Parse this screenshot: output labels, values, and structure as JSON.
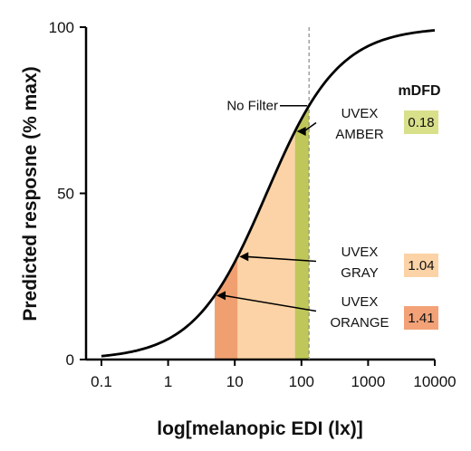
{
  "chart_data": {
    "type": "line",
    "xlabel": "log[melanopic  EDI (lx)]",
    "ylabel": "Predicted resposne  (% max)",
    "x_scale": "log",
    "xlim": [
      0.1,
      10000
    ],
    "ylim": [
      0,
      100
    ],
    "x_ticks": [
      "0.1",
      "1",
      "10",
      "100",
      "1000",
      "10000"
    ],
    "y_ticks": [
      "0",
      "50",
      "100"
    ],
    "curve": {
      "ec50": 30,
      "hill": 0.8,
      "x": [
        0.1,
        0.2,
        0.5,
        1,
        2,
        5,
        10,
        20,
        50,
        100,
        130,
        200,
        500,
        1000,
        2000,
        5000,
        10000
      ],
      "y": [
        1,
        2,
        4,
        7,
        11,
        19,
        29,
        42,
        60,
        73,
        78,
        85,
        93,
        96,
        98,
        99,
        100
      ]
    },
    "reference_line": {
      "label": "No Filter",
      "x": 130
    },
    "filters": [
      {
        "name_line1": "UVEX",
        "name_line2": "AMBER",
        "x": 80,
        "y": 72,
        "mdfd": "0.18",
        "color": "#d9e08a",
        "fill_color": "#bfc75a"
      },
      {
        "name_line1": "UVEX",
        "name_line2": "GRAY",
        "x": 11,
        "y": 28,
        "mdfd": "1.04",
        "color": "#fbd3a6",
        "fill_color": "#fbd3a6"
      },
      {
        "name_line1": "UVEX",
        "name_line2": "ORANGE",
        "x": 5,
        "y": 16,
        "mdfd": "1.41",
        "color": "#f3a278",
        "fill_color": "#f0a070"
      }
    ],
    "mdfd_header": "mDFD"
  }
}
